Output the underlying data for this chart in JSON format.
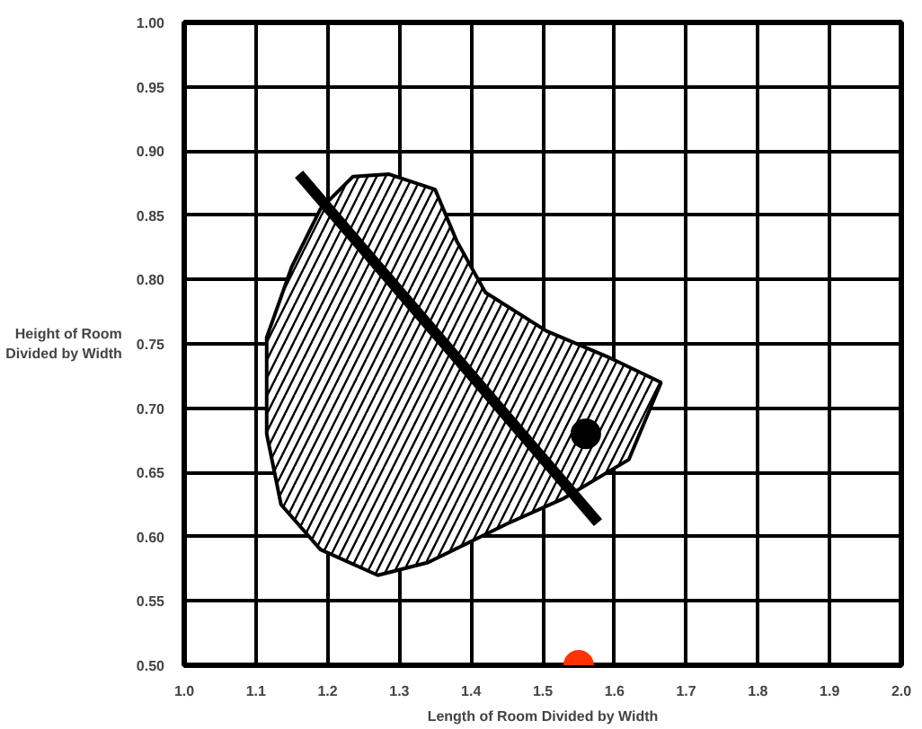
{
  "chart_data": {
    "type": "scatter",
    "xlabel": "Length of Room Divided by Width",
    "ylabel": "Height of Room\nDivided by Width",
    "xlim": [
      1.0,
      2.0
    ],
    "ylim": [
      0.5,
      1.0
    ],
    "xticks": [
      {
        "value": 1.0,
        "label": "1.0"
      },
      1.1,
      1.2,
      1.3,
      1.4,
      1.5,
      1.6,
      1.7,
      1.8,
      1.9,
      {
        "value": 2.0,
        "label": "2.0"
      }
    ],
    "yticks": [
      {
        "value": 0.5,
        "label": "0.50"
      },
      0.55,
      {
        "value": 0.6,
        "label": "0.60"
      },
      0.65,
      {
        "value": 0.7,
        "label": "0.70"
      },
      0.75,
      {
        "value": 0.8,
        "label": "0.80"
      },
      0.85,
      {
        "value": 0.9,
        "label": "0.90"
      },
      0.95,
      {
        "value": 1.0,
        "label": "1.00"
      }
    ],
    "grid": true,
    "series": [
      {
        "type": "area",
        "color": "#000000",
        "x": [
          1.235,
          1.285,
          1.35,
          1.38,
          1.42,
          1.505,
          1.59,
          1.665,
          1.62,
          1.53,
          1.45,
          1.34,
          1.27,
          1.19,
          1.135,
          1.115,
          1.115,
          1.15,
          1.19,
          1.235
        ],
        "values": [
          0.88,
          0.882,
          0.87,
          0.83,
          0.79,
          0.76,
          0.74,
          0.72,
          0.66,
          0.63,
          0.61,
          0.58,
          0.57,
          0.59,
          0.625,
          0.68,
          0.755,
          0.81,
          0.855,
          0.88
        ]
      },
      {
        "type": "line",
        "color": "#000000",
        "x": [
          1.16,
          1.577
        ],
        "values": [
          0.882,
          0.611
        ]
      },
      {
        "marker": "circle",
        "color": "#000000",
        "x": [
          1.56
        ],
        "values": [
          0.68
        ]
      },
      {
        "marker": "circle",
        "color": "#ff3300",
        "x": [
          1.55
        ],
        "values": [
          0.5
        ]
      }
    ]
  }
}
